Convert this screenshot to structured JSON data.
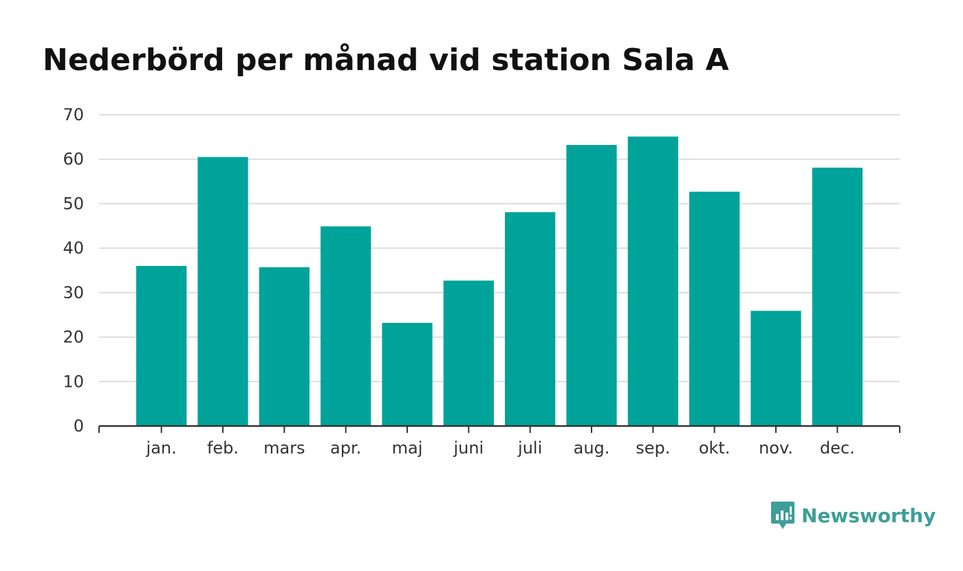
{
  "chart_data": {
    "type": "bar",
    "title": "Nederbörd per månad vid station Sala A",
    "categories": [
      "jan.",
      "feb.",
      "mars",
      "apr.",
      "maj",
      "juni",
      "juli",
      "aug.",
      "sep.",
      "okt.",
      "nov.",
      "dec."
    ],
    "values": [
      36,
      60.5,
      35.7,
      44.9,
      23.2,
      32.7,
      48.1,
      63.2,
      65.1,
      52.7,
      25.9,
      58.1
    ],
    "xlabel": "",
    "ylabel": "",
    "ylim": [
      0,
      70
    ],
    "yticks": [
      0,
      10,
      20,
      30,
      40,
      50,
      60,
      70
    ],
    "grid": true,
    "legend": "none",
    "colors": {
      "bar": "#00a39a",
      "grid": "#dddddd",
      "axis": "#333333"
    }
  },
  "brand": {
    "name": "Newsworthy",
    "color": "#3f9e98"
  }
}
